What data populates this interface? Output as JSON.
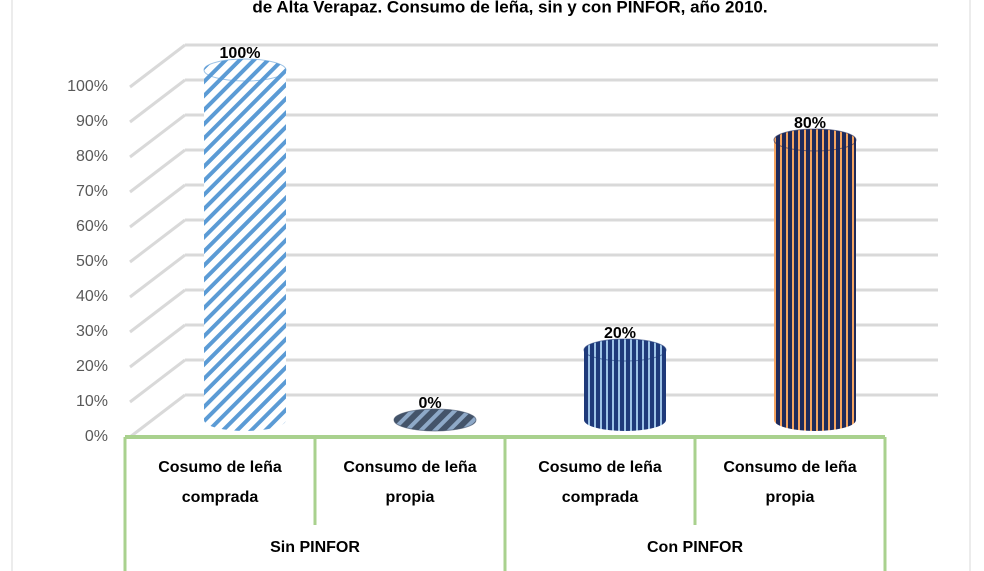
{
  "chart_data": {
    "type": "bar3d",
    "title": "de Alta Verapaz. Consumo de leña, sin y con PINFOR, año 2010.",
    "categories": [
      "Cosumo de leña comprada",
      "Consumo de leña propia",
      "Cosumo de leña comprada",
      "Consumo de leña propia"
    ],
    "groups": [
      {
        "name": "Sin PINFOR",
        "span": 2
      },
      {
        "name": "Con PINFOR",
        "span": 2
      }
    ],
    "values": [
      100,
      0,
      20,
      80
    ],
    "value_labels": [
      "100%",
      "0%",
      "20%",
      "80%"
    ],
    "colors": [
      "#5b9bd5",
      "#44546a",
      "#1f3a7a",
      "#1f2a5a"
    ],
    "stripe_colors": [
      "#ffffff",
      "#8ea9c8",
      "#9dc3e6",
      "#f4a460"
    ],
    "ylim": [
      0,
      100
    ],
    "yticks": [
      {
        "value": 0,
        "label": "0%"
      },
      {
        "value": 10,
        "label": "10%"
      },
      {
        "value": 20,
        "label": "20%"
      },
      {
        "value": 30,
        "label": "30%"
      },
      {
        "value": 40,
        "label": "40%"
      },
      {
        "value": 50,
        "label": "50%"
      },
      {
        "value": 60,
        "label": "60%"
      },
      {
        "value": 70,
        "label": "70%"
      },
      {
        "value": 80,
        "label": "80%"
      },
      {
        "value": 90,
        "label": "90%"
      },
      {
        "value": 100,
        "label": "100%"
      }
    ],
    "grid": true
  }
}
